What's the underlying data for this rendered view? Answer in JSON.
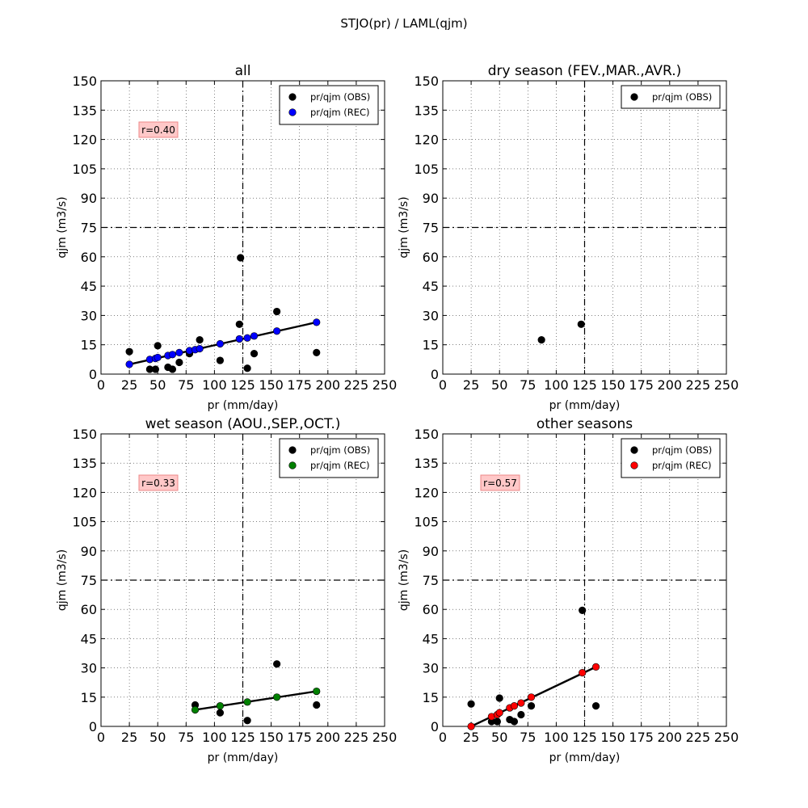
{
  "figure": {
    "suptitle": "STJO(pr) / LAML(qjm)"
  },
  "chart_data": [
    {
      "type": "scatter",
      "title": "all",
      "xlabel": "pr (mm/day)",
      "ylabel": "qjm (m3/s)",
      "xlim": [
        0,
        250
      ],
      "ylim": [
        0,
        150
      ],
      "xticks": [
        0,
        25,
        50,
        75,
        100,
        125,
        150,
        175,
        200,
        225,
        250
      ],
      "yticks": [
        0,
        15,
        30,
        45,
        60,
        75,
        90,
        105,
        120,
        135,
        150
      ],
      "grid": true,
      "legend_placement": "top-right",
      "reference_lines": {
        "x": 125,
        "y": 75
      },
      "annotation": "r=0.40",
      "series": [
        {
          "name": "pr/qjm (OBS)",
          "color": "#000000",
          "kind": "points",
          "x": [
            25,
            43,
            48,
            50,
            59,
            63,
            69,
            78,
            87,
            105,
            122,
            123,
            129,
            135,
            155,
            190
          ],
          "y": [
            11.5,
            2.5,
            2.5,
            14.5,
            3.5,
            2.5,
            6,
            10.5,
            17.5,
            7,
            25.5,
            59.5,
            3,
            10.5,
            32,
            11
          ]
        },
        {
          "name": "pr/qjm (REC)",
          "color": "#0000ff",
          "kind": "points+line",
          "x": [
            25,
            43,
            48,
            50,
            59,
            63,
            69,
            78,
            83,
            87,
            105,
            122,
            129,
            135,
            155,
            190
          ],
          "y": [
            5,
            7.5,
            8,
            8.5,
            9.5,
            10,
            11,
            12,
            12.5,
            13,
            15.5,
            18,
            18.5,
            19.5,
            22,
            26.5
          ]
        }
      ]
    },
    {
      "type": "scatter",
      "title": "dry season (FEV.,MAR.,AVR.)",
      "xlabel": "pr (mm/day)",
      "ylabel": "qjm (m3/s)",
      "xlim": [
        0,
        250
      ],
      "ylim": [
        0,
        150
      ],
      "xticks": [
        0,
        25,
        50,
        75,
        100,
        125,
        150,
        175,
        200,
        225,
        250
      ],
      "yticks": [
        0,
        15,
        30,
        45,
        60,
        75,
        90,
        105,
        120,
        135,
        150
      ],
      "grid": true,
      "legend_placement": "top-right",
      "reference_lines": {
        "x": 125,
        "y": 75
      },
      "annotation": "",
      "series": [
        {
          "name": "pr/qjm (OBS)",
          "color": "#000000",
          "kind": "points",
          "x": [
            87,
            122
          ],
          "y": [
            17.5,
            25.5
          ]
        }
      ]
    },
    {
      "type": "scatter",
      "title": "wet season (AOU.,SEP.,OCT.)",
      "xlabel": "pr (mm/day)",
      "ylabel": "qjm (m3/s)",
      "xlim": [
        0,
        250
      ],
      "ylim": [
        0,
        150
      ],
      "xticks": [
        0,
        25,
        50,
        75,
        100,
        125,
        150,
        175,
        200,
        225,
        250
      ],
      "yticks": [
        0,
        15,
        30,
        45,
        60,
        75,
        90,
        105,
        120,
        135,
        150
      ],
      "grid": true,
      "legend_placement": "top-right",
      "reference_lines": {
        "x": 125,
        "y": 75
      },
      "annotation": "r=0.33",
      "series": [
        {
          "name": "pr/qjm (OBS)",
          "color": "#000000",
          "kind": "points",
          "x": [
            83,
            105,
            129,
            155,
            190
          ],
          "y": [
            11,
            7,
            3,
            32,
            11
          ]
        },
        {
          "name": "pr/qjm (REC)",
          "color": "#008000",
          "kind": "points+line",
          "x": [
            83,
            105,
            129,
            155,
            190
          ],
          "y": [
            8.5,
            10.5,
            12.5,
            15,
            18
          ]
        }
      ]
    },
    {
      "type": "scatter",
      "title": "other seasons",
      "xlabel": "pr (mm/day)",
      "ylabel": "qjm (m3/s)",
      "xlim": [
        0,
        250
      ],
      "ylim": [
        0,
        150
      ],
      "xticks": [
        0,
        25,
        50,
        75,
        100,
        125,
        150,
        175,
        200,
        225,
        250
      ],
      "yticks": [
        0,
        15,
        30,
        45,
        60,
        75,
        90,
        105,
        120,
        135,
        150
      ],
      "grid": true,
      "legend_placement": "top-right",
      "reference_lines": {
        "x": 125,
        "y": 75
      },
      "annotation": "r=0.57",
      "series": [
        {
          "name": "pr/qjm (OBS)",
          "color": "#000000",
          "kind": "points",
          "x": [
            25,
            43,
            48,
            50,
            59,
            63,
            69,
            78,
            123,
            135
          ],
          "y": [
            11.5,
            2.5,
            2.5,
            14.5,
            3.5,
            2.5,
            6,
            10.5,
            59.5,
            10.5
          ]
        },
        {
          "name": "pr/qjm (REC)",
          "color": "#ff0000",
          "kind": "points+line",
          "x": [
            25,
            43,
            48,
            50,
            59,
            63,
            69,
            78,
            123,
            135
          ],
          "y": [
            0,
            5,
            6,
            7,
            9.5,
            10.5,
            12,
            15,
            27.5,
            30.5
          ]
        }
      ]
    }
  ]
}
